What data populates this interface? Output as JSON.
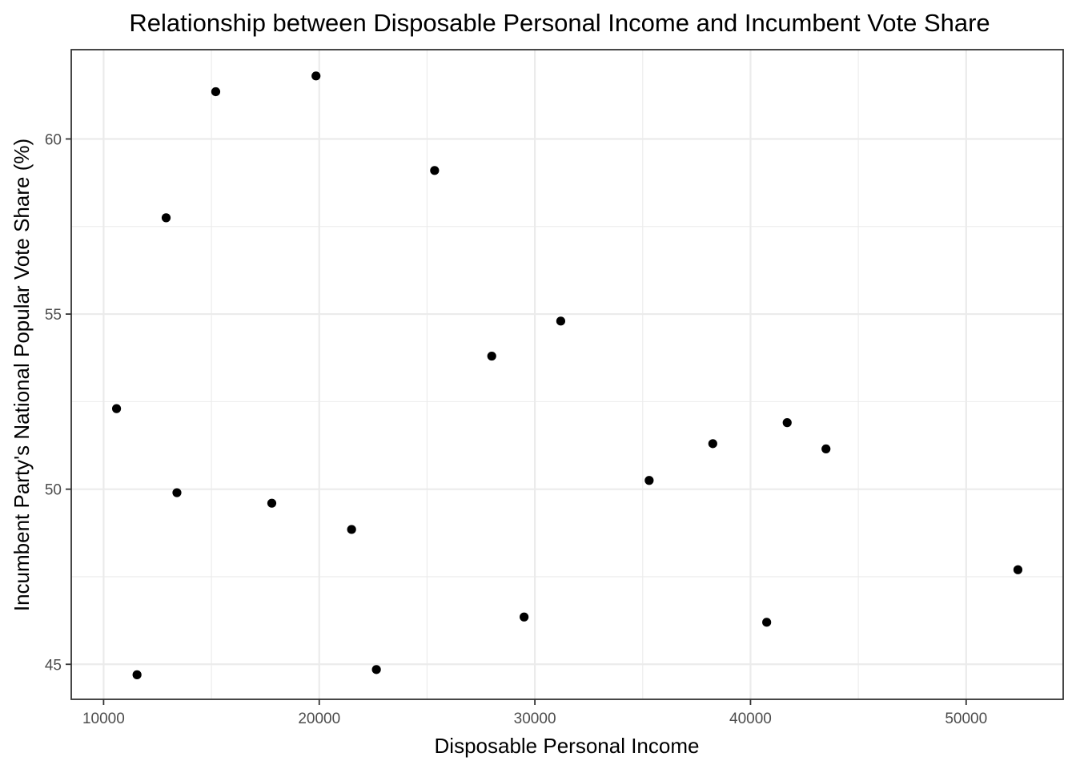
{
  "chart_data": {
    "type": "scatter",
    "title": "Relationship between Disposable Personal Income and Incumbent Vote Share",
    "xlabel": "Disposable Personal Income",
    "ylabel": "Incumbent Party's National Popular Vote Share (%)",
    "xlim": [
      8500,
      54500
    ],
    "ylim": [
      44.0,
      62.55
    ],
    "x_ticks": [
      10000,
      20000,
      30000,
      40000,
      50000
    ],
    "x_tick_labels": [
      "10000",
      "20000",
      "30000",
      "40000",
      "50000"
    ],
    "y_ticks": [
      45,
      50,
      55,
      60
    ],
    "y_tick_labels": [
      "45",
      "50",
      "55",
      "60"
    ],
    "x_minor_ticks": [
      15000,
      25000,
      35000,
      45000
    ],
    "y_minor_ticks": [
      47.5,
      52.5,
      57.5
    ],
    "grid": true,
    "point_color": "#000000",
    "points": [
      {
        "x": 10600,
        "y": 52.3
      },
      {
        "x": 11550,
        "y": 44.7
      },
      {
        "x": 12900,
        "y": 57.75
      },
      {
        "x": 13400,
        "y": 49.9
      },
      {
        "x": 15200,
        "y": 61.35
      },
      {
        "x": 17800,
        "y": 49.6
      },
      {
        "x": 19850,
        "y": 61.8
      },
      {
        "x": 21500,
        "y": 48.85
      },
      {
        "x": 22650,
        "y": 44.85
      },
      {
        "x": 25350,
        "y": 59.1
      },
      {
        "x": 28000,
        "y": 53.8
      },
      {
        "x": 29500,
        "y": 46.35
      },
      {
        "x": 31200,
        "y": 54.8
      },
      {
        "x": 35300,
        "y": 50.25
      },
      {
        "x": 38250,
        "y": 51.3
      },
      {
        "x": 40750,
        "y": 46.2
      },
      {
        "x": 41700,
        "y": 51.9
      },
      {
        "x": 43500,
        "y": 51.15
      },
      {
        "x": 52400,
        "y": 47.7
      }
    ]
  }
}
